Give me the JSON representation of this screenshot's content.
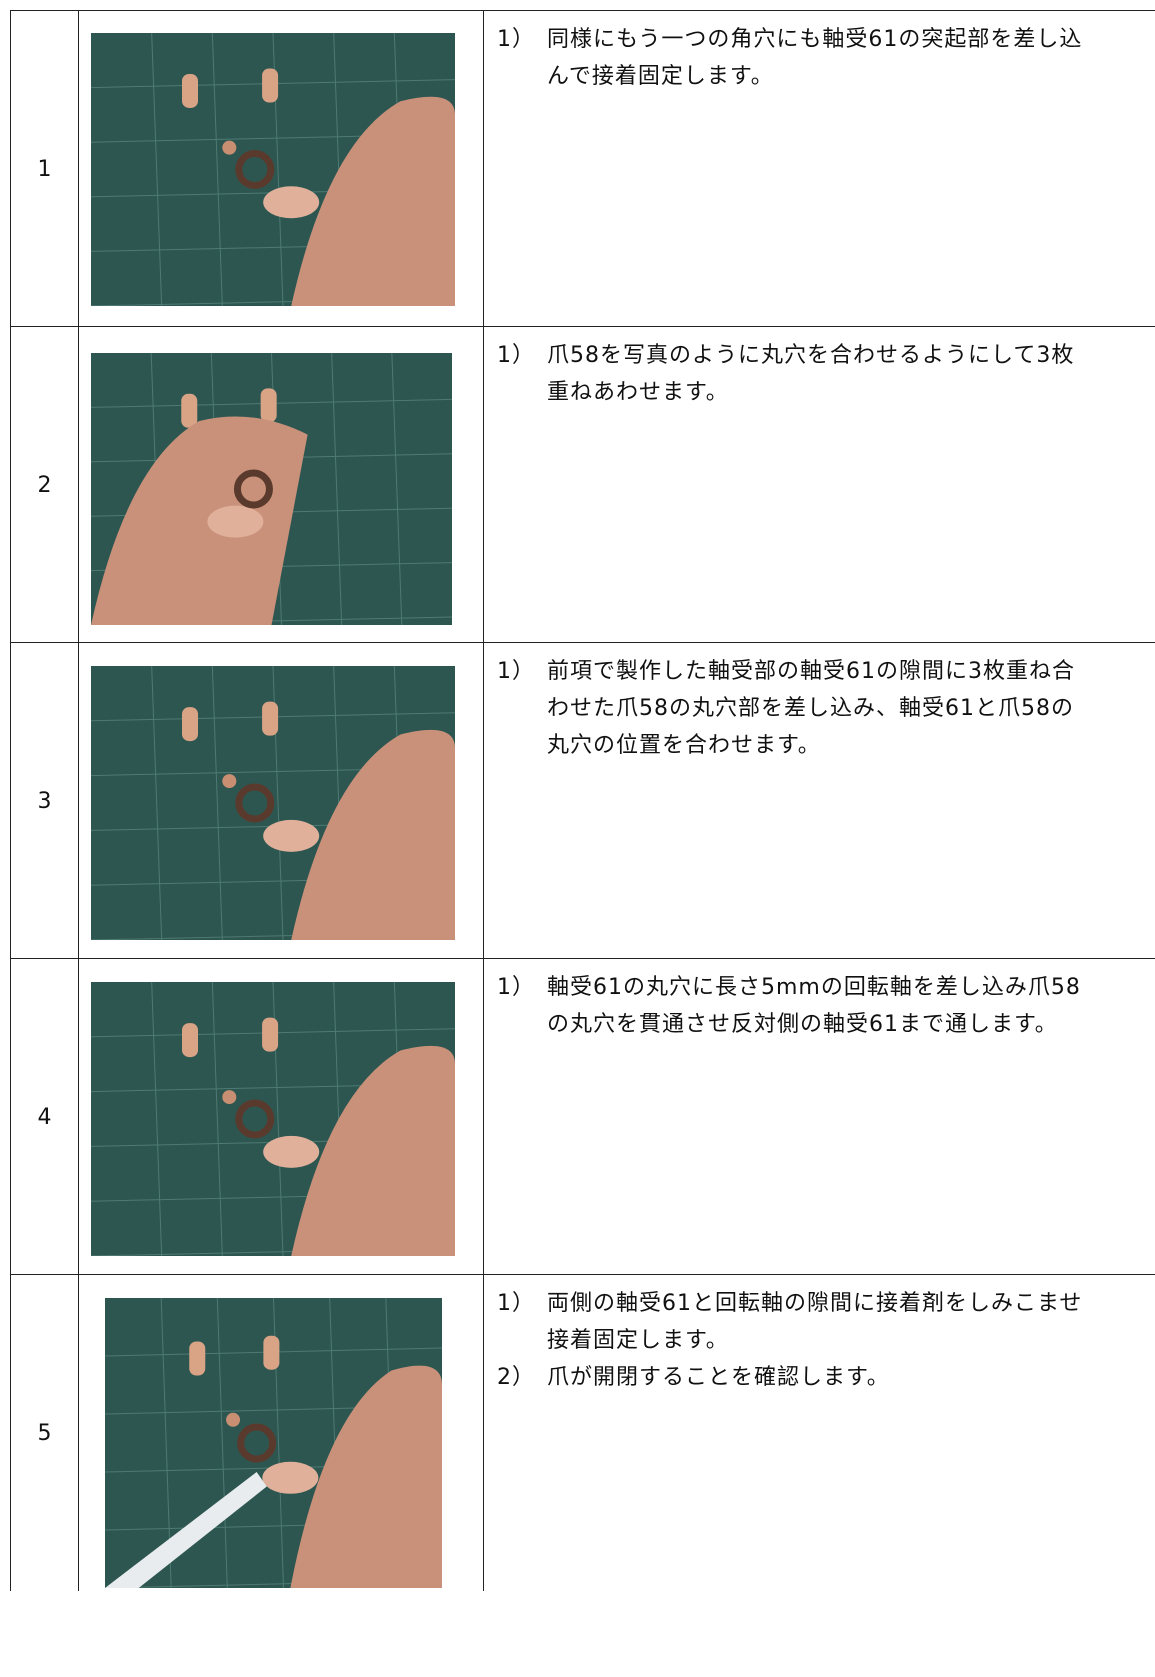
{
  "table": {
    "rows": [
      {
        "number": "1",
        "items": [
          {
            "marker": "1）",
            "text": "同様にもう一つの角穴にも軸受61の突起部を差し込んで接着固定します。"
          }
        ]
      },
      {
        "number": "2",
        "items": [
          {
            "marker": "1）",
            "text": "爪58を写真のように丸穴を合わせるようにして3枚重ねあわせます。"
          }
        ]
      },
      {
        "number": "3",
        "items": [
          {
            "marker": "1）",
            "text": "前項で製作した軸受部の軸受61の隙間に3枚重ね合わせた爪58の丸穴部を差し込み、軸受61と爪58の丸穴の位置を合わせます。"
          }
        ]
      },
      {
        "number": "4",
        "items": [
          {
            "marker": "1）",
            "text": "軸受61の丸穴に長さ5mmの回転軸を差し込み爪58の丸穴を貫通させ反対側の軸受61まで通します。"
          }
        ]
      },
      {
        "number": "5",
        "items": [
          {
            "marker": "1）",
            "text": "両側の軸受61と回転軸の隙間に接着剤をしみこませ接着固定します。"
          },
          {
            "marker": "2）",
            "text": "爪が開閉することを確認します。"
          }
        ]
      }
    ]
  }
}
